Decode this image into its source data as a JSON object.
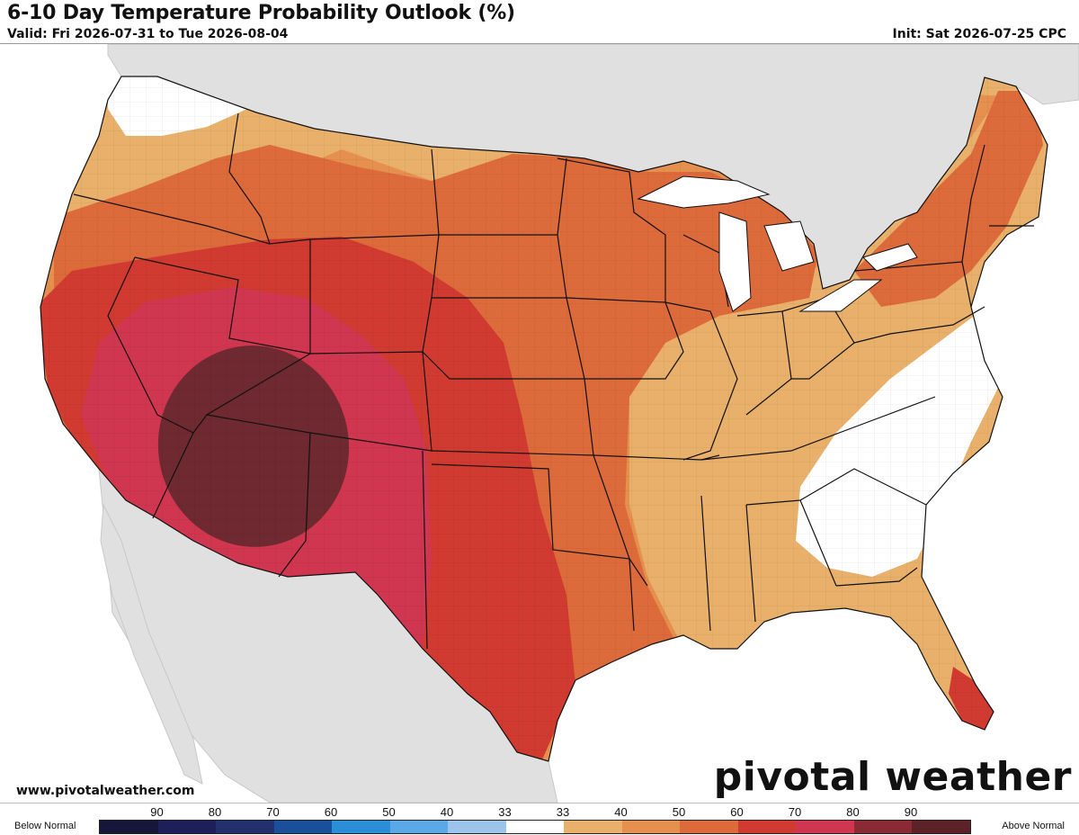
{
  "header": {
    "title": "6-10 Day Temperature Probability Outlook (%)",
    "valid": "Valid: Fri 2026-07-31 to Tue 2026-08-04",
    "init": "Init: Sat 2026-07-25 CPC"
  },
  "footer": {
    "website": "www.pivotalweather.com",
    "brand": "pivotal weather",
    "brand_logo_icon": "gear-icon"
  },
  "legend": {
    "left_label": "Below Normal",
    "right_label": "Above Normal",
    "ticks": [
      "90",
      "80",
      "70",
      "60",
      "50",
      "40",
      "33",
      "33",
      "40",
      "50",
      "60",
      "70",
      "80",
      "90"
    ],
    "colors": [
      "#16163a",
      "#1e1e5a",
      "#23306e",
      "#1a4f9a",
      "#2a8fd6",
      "#5aa9e6",
      "#9cc4ea",
      "#ffffff",
      "#e8b06a",
      "#e5904e",
      "#dc6a3a",
      "#d03a30",
      "#d13650",
      "#8a2a35",
      "#5c2227"
    ]
  },
  "map": {
    "region": "Contiguous United States",
    "colors": {
      "ocean": "#ffffff",
      "land_outside": "#e0e0e0",
      "p33_40": "#e8b06a",
      "p40_50": "#e5904e",
      "p50_60": "#dc6a3a",
      "p60_70": "#d03a30",
      "p70_80": "#d13650",
      "p80_90": "#6e2a30",
      "near_normal": "#ffffff"
    }
  }
}
